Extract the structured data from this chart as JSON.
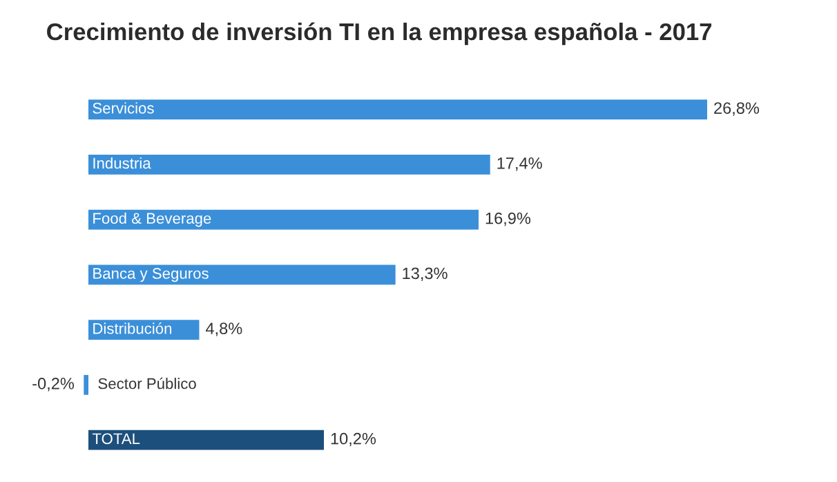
{
  "chart_data": {
    "type": "bar",
    "orientation": "horizontal",
    "title": "Crecimiento de inversión TI en la empresa española - 2017",
    "categories": [
      "Servicios",
      "Industria",
      "Food & Beverage",
      "Banca y Seguros",
      "Distribución",
      "Sector Público",
      "TOTAL"
    ],
    "values": [
      26.8,
      17.4,
      16.9,
      13.3,
      4.8,
      -0.2,
      10.2
    ],
    "value_labels": [
      "26,8%",
      "17,4%",
      "16,9%",
      "13,3%",
      "4,8%",
      "-0,2%",
      "10,2%"
    ],
    "colors": [
      "#3b8fd9",
      "#3b8fd9",
      "#3b8fd9",
      "#3b8fd9",
      "#3b8fd9",
      "#3b8fd9",
      "#1d4f7c"
    ]
  }
}
